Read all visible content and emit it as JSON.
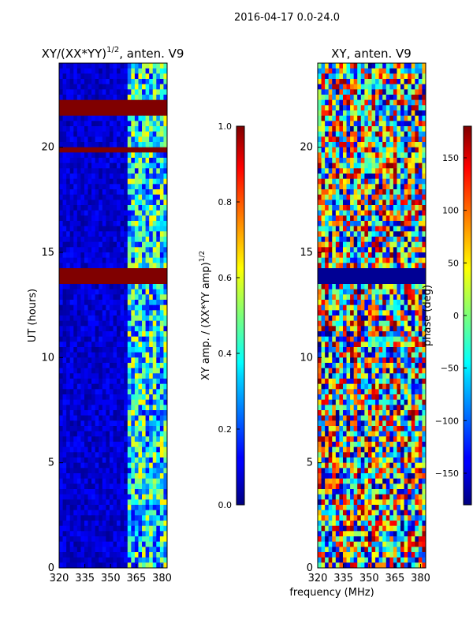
{
  "chart_data": [
    {
      "type": "heatmap",
      "suptitle": "2016-04-17 0.0-24.0",
      "title": "XY/(XX*YY)",
      "title_sup": "1/2",
      "title_suffix": ", anten. V9",
      "xlabel": "",
      "ylabel": "UT (hours)",
      "x_ticks": [
        320,
        335,
        350,
        365,
        380
      ],
      "y_ticks": [
        0,
        5,
        10,
        15,
        20
      ],
      "xlim": [
        320,
        383
      ],
      "ylim": [
        0,
        24
      ],
      "colorbar": {
        "label": "XY amp. / (XX*YY amp)",
        "label_sup": "1/2",
        "ticks": [
          "0.0",
          "0.2",
          "0.4",
          "0.6",
          "0.8",
          "1.0"
        ],
        "range": [
          0.0,
          1.0
        ]
      },
      "flagged_time_ranges_hours": [
        [
          13.6,
          14.3
        ],
        [
          19.8,
          20.1
        ],
        [
          21.4,
          22.2
        ]
      ]
    },
    {
      "type": "heatmap",
      "title": "XY, anten. V9",
      "xlabel": "frequency (MHz)",
      "ylabel": "",
      "x_ticks": [
        320,
        335,
        350,
        365,
        380
      ],
      "y_ticks": [
        0,
        5,
        10,
        15,
        20
      ],
      "xlim": [
        320,
        383
      ],
      "ylim": [
        0,
        24
      ],
      "colorbar": {
        "label": "phase (deg)",
        "ticks": [
          "150",
          "100",
          "50",
          "0",
          "−50",
          "−100",
          "−150"
        ],
        "range": [
          -180,
          180
        ]
      }
    }
  ]
}
